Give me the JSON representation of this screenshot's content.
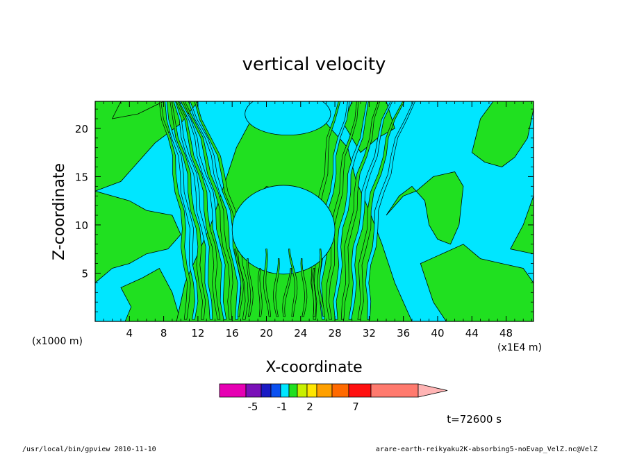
{
  "chart_data": {
    "type": "heatmap",
    "title": "vertical velocity",
    "xlabel": "X-coordinate",
    "ylabel": "Z-coordinate",
    "x_units_left": "(x1000 m)",
    "x_units_right": "(x1E4 m)",
    "xlim": [
      0,
      51.2
    ],
    "ylim": [
      0,
      22.8
    ],
    "xticks": [
      "4",
      "8",
      "12",
      "16",
      "20",
      "24",
      "28",
      "32",
      "36",
      "40",
      "44",
      "48"
    ],
    "yticks": [
      "5",
      "10",
      "15",
      "20"
    ],
    "colorbar": {
      "ticks": [
        "-5",
        "-1",
        "2",
        "7"
      ],
      "colors": [
        "#e600b3",
        "#7a10b8",
        "#1a1ac4",
        "#0a50f0",
        "#00e6ff",
        "#20e020",
        "#c8f000",
        "#ffe600",
        "#ffa000",
        "#ff6a00",
        "#ff1010",
        "#ff7a6e",
        "#ffb4b4"
      ]
    },
    "fill_colors": {
      "low": "#00e6ff",
      "high": "#20e020"
    },
    "time_label": "t=72600 s"
  },
  "footer": {
    "left": "/usr/local/bin/gpview  2010-11-10",
    "right": "arare-earth-reikyaku2K-absorbing5-noEvap_VelZ.nc@VelZ"
  }
}
